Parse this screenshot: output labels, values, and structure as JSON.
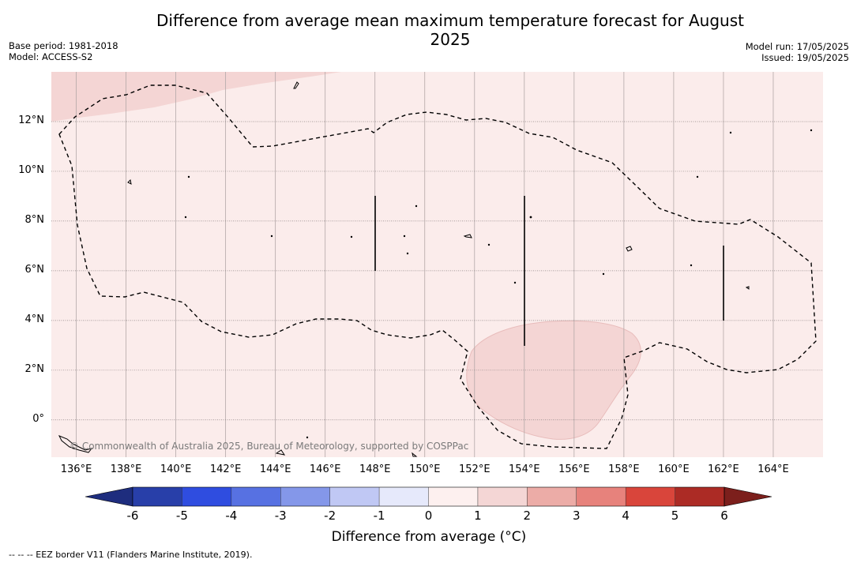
{
  "title": "Difference from average mean maximum temperature forecast for August 2025",
  "meta_left": {
    "base_period": "Base period: 1981-2018",
    "model": "Model: ACCESS-S2"
  },
  "meta_right": {
    "model_run": "Model run: 17/05/2025",
    "issued": "Issued: 19/05/2025"
  },
  "map": {
    "lon_range": [
      135,
      166
    ],
    "lat_range": [
      -1.5,
      14
    ],
    "x_ticks": [
      {
        "lon": 136,
        "label": "136°E"
      },
      {
        "lon": 138,
        "label": "138°E"
      },
      {
        "lon": 140,
        "label": "140°E"
      },
      {
        "lon": 142,
        "label": "142°E"
      },
      {
        "lon": 144,
        "label": "144°E"
      },
      {
        "lon": 146,
        "label": "146°E"
      },
      {
        "lon": 148,
        "label": "148°E"
      },
      {
        "lon": 150,
        "label": "150°E"
      },
      {
        "lon": 152,
        "label": "152°E"
      },
      {
        "lon": 154,
        "label": "154°E"
      },
      {
        "lon": 156,
        "label": "156°E"
      },
      {
        "lon": 158,
        "label": "158°E"
      },
      {
        "lon": 160,
        "label": "160°E"
      },
      {
        "lon": 162,
        "label": "162°E"
      },
      {
        "lon": 164,
        "label": "164°E"
      }
    ],
    "y_ticks": [
      {
        "lat": 12,
        "label": "12°N"
      },
      {
        "lat": 10,
        "label": "10°N"
      },
      {
        "lat": 8,
        "label": "8°N"
      },
      {
        "lat": 6,
        "label": "6°N"
      },
      {
        "lat": 4,
        "label": "4°N"
      },
      {
        "lat": 2,
        "label": "2°N"
      },
      {
        "lat": 0,
        "label": "0°"
      }
    ],
    "background_anomaly_range": "0 to 1",
    "background_color": "#fbeceb",
    "patch_anomaly_range": "1 to 2",
    "patch_color": "#f4d5d4",
    "copyright": "© Commonwealth of Australia 2025, Bureau of Meteorology, supported by COSPPac"
  },
  "colorbar": {
    "label": "Difference from average (°C)",
    "ticks": [
      "-6",
      "-5",
      "-4",
      "-3",
      "-2",
      "-1",
      "0",
      "1",
      "2",
      "3",
      "4",
      "5",
      "6"
    ],
    "colors": [
      "#283fa9",
      "#2f4de0",
      "#5771e2",
      "#8497e9",
      "#c0c8f4",
      "#e6e9fb",
      "#fdf0ef",
      "#f4d6d5",
      "#ecaca7",
      "#e7827c",
      "#d9453b",
      "#ac2b25"
    ],
    "under_color": "#1e2d7e",
    "over_color": "#7c1f1c"
  },
  "footnote": "--  --  -- EEZ border V11 (Flanders Marine Institute, 2019)."
}
